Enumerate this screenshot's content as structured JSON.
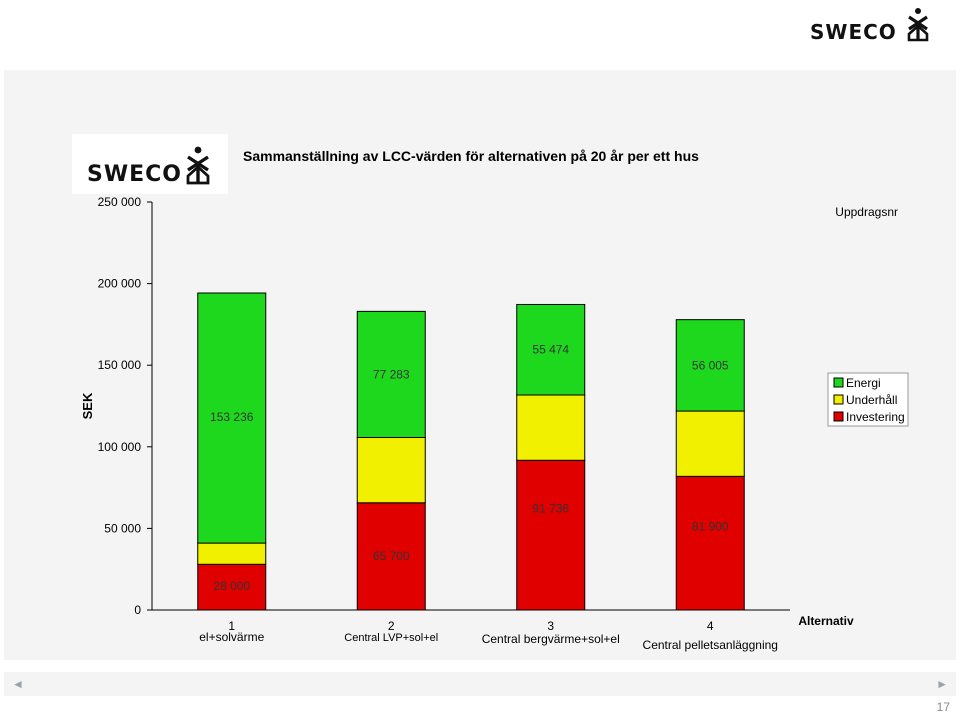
{
  "brand": {
    "logo_text": "SWECO"
  },
  "slide": {
    "page_number": "17"
  },
  "nav": {
    "prev_arrow": "◄",
    "next_arrow": "►"
  },
  "colors": {
    "energi": "#1ed81e",
    "underhall": "#f0f000",
    "investering": "#e00000"
  },
  "chart_data": {
    "type": "bar",
    "stacked": true,
    "title": "Sammanställning av LCC-värden för alternativen på 20 år per ett hus",
    "subtitle": "Uppdragsnr",
    "ylabel": "SEK",
    "xlabel": "Alternativ",
    "ylim": [
      0,
      250000
    ],
    "yticks": [
      0,
      50000,
      100000,
      150000,
      200000,
      250000
    ],
    "ytick_labels": [
      "0",
      "50 000",
      "100 000",
      "150 000",
      "200 000",
      "250 000"
    ],
    "categories": [
      "1",
      "2",
      "3",
      "4"
    ],
    "category_names": [
      "el+solvärme",
      "Central LVP+sol+el",
      "Central bergvärme+sol+el",
      "Central pelletsanläggning"
    ],
    "series": [
      {
        "name": "Investering",
        "values": [
          28000,
          65700,
          91736,
          81900
        ],
        "labels": [
          "28 000",
          "65 700",
          "91 736",
          "81 900"
        ]
      },
      {
        "name": "Underhåll",
        "values": [
          13000,
          40000,
          40000,
          40000
        ]
      },
      {
        "name": "Energi",
        "values": [
          153236,
          77283,
          55474,
          56005
        ],
        "labels": [
          "153 236",
          "77 283",
          "55 474",
          "56 005"
        ]
      }
    ],
    "legend": {
      "position": "right",
      "entries": [
        "Energi",
        "Underhåll",
        "Investering"
      ]
    },
    "grid": false
  }
}
